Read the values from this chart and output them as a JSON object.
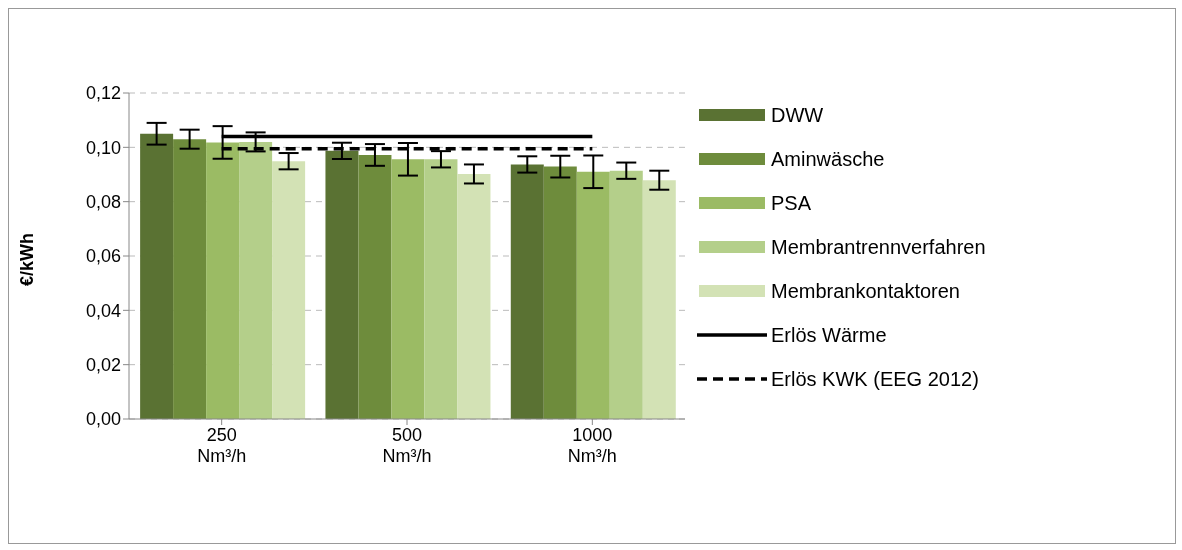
{
  "chart_data": {
    "type": "bar",
    "ylabel": "€/kWh",
    "categories": [
      "250 Nm³/h",
      "500 Nm³/h",
      "1000 Nm³/h"
    ],
    "series": [
      {
        "name": "DWW",
        "color": "#5a7233",
        "values": [
          0.105,
          0.0987,
          0.0937
        ],
        "errors": [
          0.004,
          0.003,
          0.003
        ]
      },
      {
        "name": "Aminwäsche",
        "color": "#6e8c3c",
        "values": [
          0.103,
          0.0972,
          0.0929
        ],
        "errors": [
          0.0035,
          0.004,
          0.004
        ]
      },
      {
        "name": "PSA",
        "color": "#9bbb64",
        "values": [
          0.1018,
          0.0956,
          0.091
        ],
        "errors": [
          0.006,
          0.006,
          0.006
        ]
      },
      {
        "name": "Membrantrennverfahren",
        "color": "#b4cf8a",
        "values": [
          0.102,
          0.0956,
          0.0914
        ],
        "errors": [
          0.0035,
          0.003,
          0.003
        ]
      },
      {
        "name": "Membrankontaktoren",
        "color": "#d3e2b5",
        "values": [
          0.0949,
          0.0902,
          0.0879
        ],
        "errors": [
          0.003,
          0.0035,
          0.0035
        ]
      },
      {
        "name": "Erlös Wärme",
        "type": "line",
        "color": "#000000",
        "line_style": "solid",
        "values": [
          0.104,
          0.104,
          0.104
        ]
      },
      {
        "name": "Erlös KWK (EEG 2012)",
        "type": "line",
        "color": "#000000",
        "line_style": "dashed",
        "values": [
          0.0995,
          0.0995,
          0.0995
        ]
      }
    ],
    "ylim": [
      0,
      0.12
    ],
    "yticks": [
      {
        "value": 0,
        "label": "0,00"
      },
      {
        "value": 0.02,
        "label": "0,02"
      },
      {
        "value": 0.04,
        "label": "0,04"
      },
      {
        "value": 0.06,
        "label": "0,06"
      },
      {
        "value": 0.08,
        "label": "0,08"
      },
      {
        "value": 0.1,
        "label": "0,10"
      },
      {
        "value": 0.12,
        "label": "0,12"
      }
    ],
    "grid": "y",
    "legend": "right",
    "marker": "none"
  }
}
